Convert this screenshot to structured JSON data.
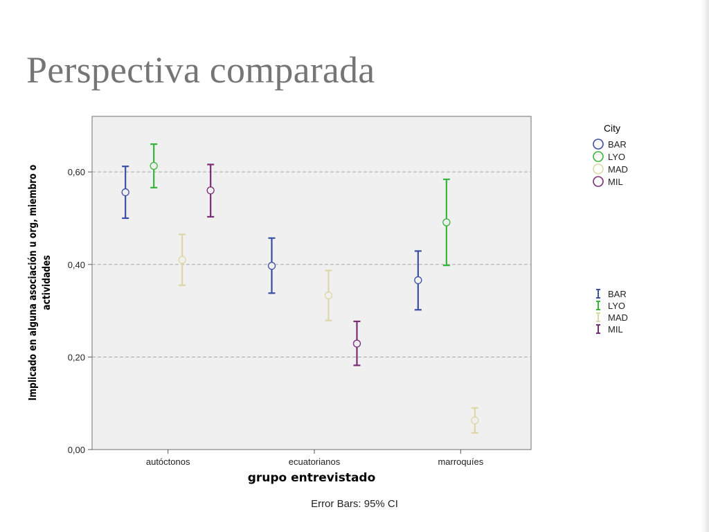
{
  "slide": {
    "title": "Perspectiva comparada"
  },
  "chart_data": {
    "type": "scatter",
    "subtype": "error-bar",
    "title": "",
    "xlabel": "grupo entrevistado",
    "ylabel_lines": [
      "Implicado en alguna asociación u org, miembro o",
      "actividades"
    ],
    "footnote": "Error Bars: 95% CI",
    "categories": [
      "autóctonos",
      "ecuatorianos",
      "marroquíes"
    ],
    "ylim": [
      0,
      0.72
    ],
    "yticks": [
      0,
      0.2,
      0.4,
      0.6
    ],
    "ytick_labels": [
      "0,00",
      "0,20",
      "0,40",
      "0,60"
    ],
    "grid": true,
    "legend_title": "City",
    "legend_placement": "right",
    "series": [
      {
        "name": "BAR",
        "color": "#3a4ea3",
        "means": [
          0.556,
          0.397,
          0.366
        ],
        "lower": [
          0.5,
          0.338,
          0.302
        ],
        "upper": [
          0.612,
          0.457,
          0.429
        ]
      },
      {
        "name": "LYO",
        "color": "#35b53a",
        "means": [
          0.613,
          null,
          0.491
        ],
        "lower": [
          0.566,
          null,
          0.398
        ],
        "upper": [
          0.66,
          null,
          0.584
        ]
      },
      {
        "name": "MAD",
        "color": "#ddd7a7",
        "means": [
          0.41,
          0.333,
          0.063
        ],
        "lower": [
          0.355,
          0.279,
          0.036
        ],
        "upper": [
          0.465,
          0.387,
          0.09
        ]
      },
      {
        "name": "MIL",
        "color": "#7b2a76",
        "means": [
          0.56,
          0.229,
          null
        ],
        "lower": [
          0.503,
          0.182,
          null
        ],
        "upper": [
          0.616,
          0.277,
          null
        ]
      }
    ]
  }
}
